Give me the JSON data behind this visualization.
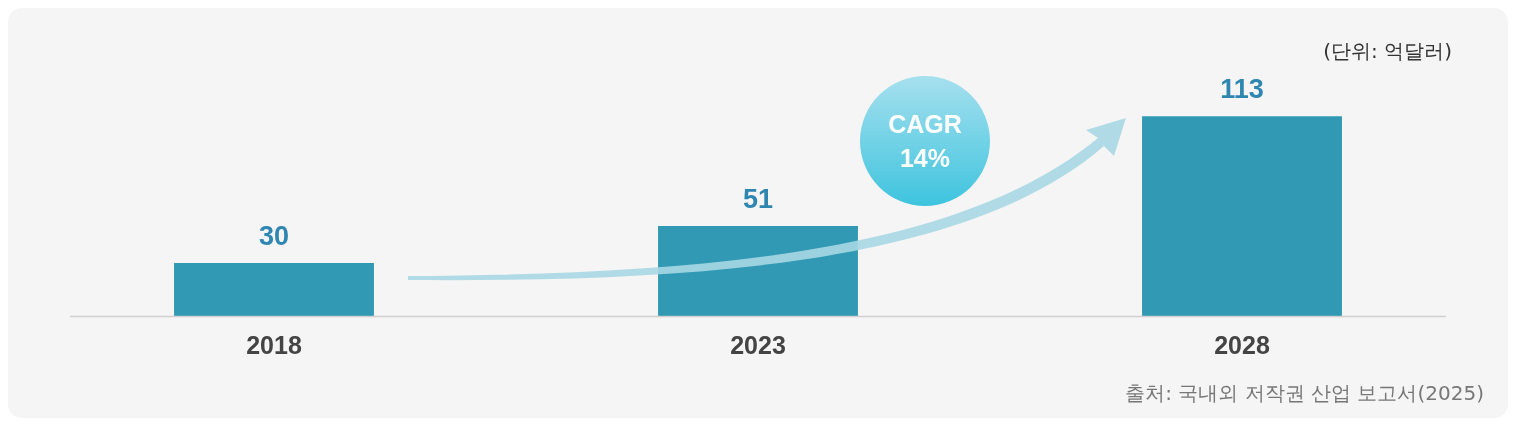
{
  "chart_data": {
    "type": "bar",
    "categories": [
      "2018",
      "2023",
      "2028"
    ],
    "values": [
      30,
      51,
      113
    ],
    "color": "#3199b3",
    "data_labels": true,
    "grid": false,
    "legend": false,
    "annotations": [
      "(단위: 억달러)",
      "CAGR 14%",
      "출처: 국내외 저작권 산업 보고서(2025)"
    ]
  }
}
